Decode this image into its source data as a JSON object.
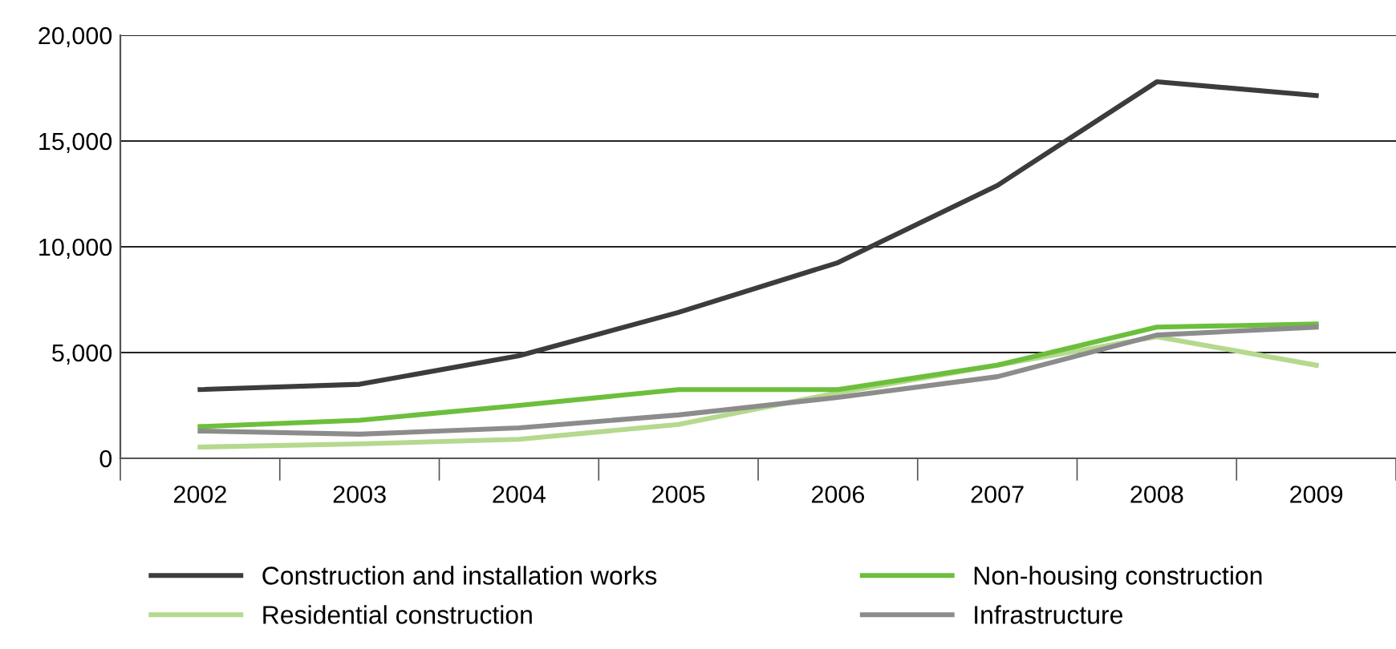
{
  "chart_data": {
    "type": "line",
    "categories": [
      "2002",
      "2003",
      "2004",
      "2005",
      "2006",
      "2007",
      "2008",
      "2009"
    ],
    "series": [
      {
        "name": "Construction and installation works",
        "color": "#3c3c3c",
        "values": [
          3250,
          3500,
          4850,
          6900,
          9250,
          12900,
          17800,
          17150
        ]
      },
      {
        "name": "Residential construction",
        "color": "#b5d98e",
        "values": [
          530,
          680,
          900,
          1600,
          3100,
          4400,
          5750,
          4400
        ]
      },
      {
        "name": "Non-housing construction",
        "color": "#6cbf3c",
        "values": [
          1500,
          1800,
          2500,
          3250,
          3250,
          4400,
          6200,
          6350
        ]
      },
      {
        "name": "Infrastructure",
        "color": "#8c8c8c",
        "values": [
          1290,
          1140,
          1440,
          2050,
          2880,
          3860,
          5830,
          6200
        ]
      }
    ],
    "ylim": [
      0,
      20000
    ],
    "yticks": [
      {
        "value": 0,
        "label": "0"
      },
      {
        "value": 5000,
        "label": "5,000"
      },
      {
        "value": 10000,
        "label": "10,000"
      },
      {
        "value": 15000,
        "label": "15,000"
      },
      {
        "value": 20000,
        "label": "20,000"
      }
    ],
    "grid": "y",
    "legend": "bottom",
    "marker": "none",
    "line_style": "solid"
  }
}
